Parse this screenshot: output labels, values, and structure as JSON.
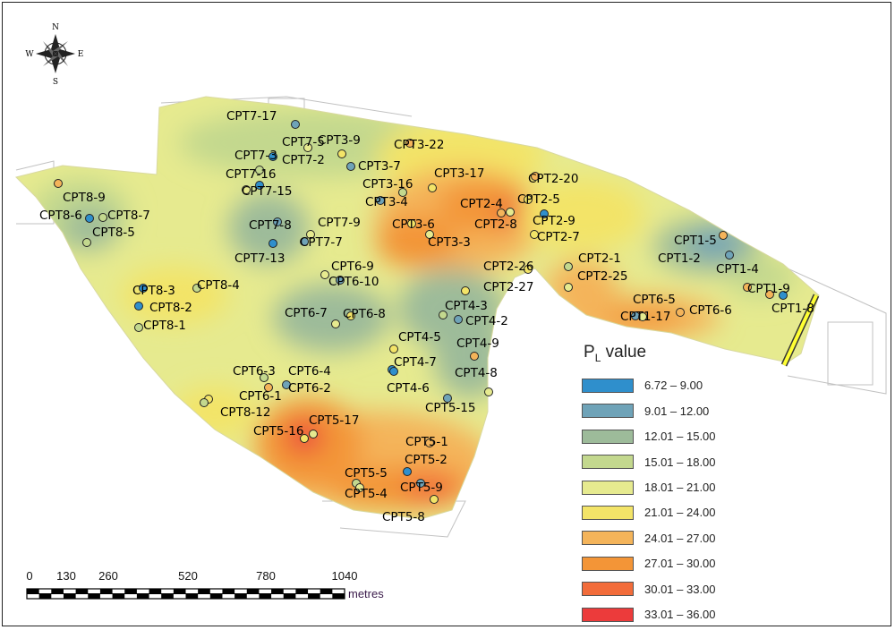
{
  "map": {
    "compass": {
      "n": "N",
      "s": "S",
      "e": "E",
      "w": "W"
    },
    "cpt_labels": [
      "CPT7-17",
      "CPT7-5",
      "CPT3-9",
      "CPT3-22",
      "CPT7-3",
      "CPT7-2",
      "CPT3-7",
      "CPT7-16",
      "CPT3-17",
      "CPT2-20",
      "CPT7-15",
      "CPT3-16",
      "CPT3-4",
      "CPT2-4",
      "CPT2-5",
      "CPT8-9",
      "CPT8-6",
      "CPT8-7",
      "CPT7-8",
      "CPT7-9",
      "CPT3-6",
      "CPT2-8",
      "CPT2-9",
      "CPT8-5",
      "CPT7-7",
      "CPT3-3",
      "CPT2-7",
      "CPT1-5",
      "CPT7-13",
      "CPT2-1",
      "CPT1-2",
      "CPT6-9",
      "CPT2-26",
      "CPT1-4",
      "CPT8-3",
      "CPT8-4",
      "CPT6-10",
      "CPT2-25",
      "CPT2-27",
      "CPT1-9",
      "CPT8-2",
      "CPT4-3",
      "CPT6-5",
      "CPT6-7",
      "CPT6-8",
      "CPT6-6",
      "CPT1-8",
      "CPT8-1",
      "CPT4-2",
      "CPT1-17",
      "CPT4-5",
      "CPT4-9",
      "CPT4-7",
      "CPT6-3",
      "CPT6-4",
      "CPT4-8",
      "CPT6-1",
      "CPT6-2",
      "CPT4-6",
      "CPT8-12",
      "CPT5-15",
      "CPT5-17",
      "CPT5-16",
      "CPT5-1",
      "CPT5-2",
      "CPT5-5",
      "CPT5-9",
      "CPT5-4",
      "CPT5-8"
    ]
  },
  "legend": {
    "title_main": "P",
    "title_sub": "L",
    "title_rest": " value",
    "items": [
      {
        "label": "6.72 – 9.00",
        "color": "#2f8fcc"
      },
      {
        "label": "9.01 – 12.00",
        "color": "#6fa3b8"
      },
      {
        "label": "12.01 – 15.00",
        "color": "#9dbb9a"
      },
      {
        "label": "15.01 – 18.00",
        "color": "#c3d88e"
      },
      {
        "label": "18.01 – 21.00",
        "color": "#e6ea8f"
      },
      {
        "label": "21.01 – 24.00",
        "color": "#f3e468"
      },
      {
        "label": "24.01 – 27.00",
        "color": "#f4b45a"
      },
      {
        "label": "27.01 – 30.00",
        "color": "#f39537"
      },
      {
        "label": "30.01 – 33.00",
        "color": "#f26c3a"
      },
      {
        "label": "33.01 – 36.00",
        "color": "#ec3b3b"
      }
    ]
  },
  "scale": {
    "ticks": [
      "0",
      "130",
      "260",
      "520",
      "780",
      "1040"
    ],
    "units": "metres"
  }
}
